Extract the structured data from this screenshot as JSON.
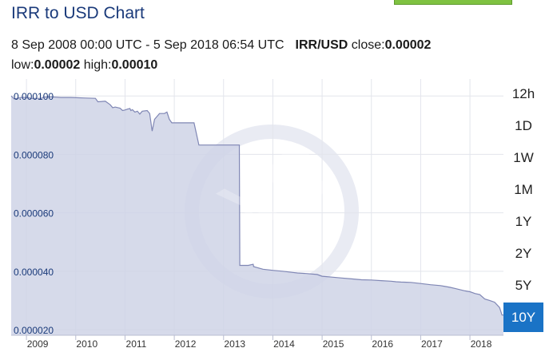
{
  "header": {
    "title": "IRR to USD Chart",
    "range_text": "8 Sep 2008 00:00 UTC - 5 Sep 2018 06:54 UTC",
    "pair": "IRR/USD",
    "close_label": "close:",
    "close_value": "0.00002",
    "low_label": "low:",
    "low_value": "0.00002",
    "high_label": "high:",
    "high_value": "0.00010"
  },
  "ranges": [
    {
      "label": "12h",
      "active": false
    },
    {
      "label": "1D",
      "active": false
    },
    {
      "label": "1W",
      "active": false
    },
    {
      "label": "1M",
      "active": false
    },
    {
      "label": "1Y",
      "active": false
    },
    {
      "label": "2Y",
      "active": false
    },
    {
      "label": "5Y",
      "active": false
    },
    {
      "label": "10Y",
      "active": true
    }
  ],
  "colors": {
    "area_fill": "#cfd3e6",
    "line": "#7f86b4",
    "active_button": "#1a73c6",
    "title": "#1a3a7a"
  },
  "chart_data": {
    "type": "area",
    "title": "IRR to USD Chart",
    "xlabel": "",
    "ylabel": "",
    "x_ticks": [
      "2009",
      "2010",
      "2011",
      "2012",
      "2013",
      "2014",
      "2015",
      "2016",
      "2017",
      "2018"
    ],
    "y_ticks": [
      "0.000020",
      "0.000040",
      "0.000060",
      "0.000080",
      "0.000100"
    ],
    "xlim": [
      2008.69,
      2018.68
    ],
    "ylim": [
      1.81e-05,
      0.0001058
    ],
    "grid": true,
    "series": [
      {
        "x": [
          2008.69,
          2008.75,
          2008.9,
          2009.0,
          2009.1,
          2009.3,
          2009.35,
          2009.5,
          2009.7,
          2009.9,
          2010.2,
          2010.4,
          2010.45,
          2010.6,
          2010.7,
          2010.75,
          2010.8,
          2010.9,
          2010.95,
          2011.0,
          2011.05,
          2011.1,
          2011.12,
          2011.15,
          2011.2,
          2011.25,
          2011.3,
          2011.35,
          2011.45,
          2011.5,
          2011.55,
          2011.6,
          2011.65,
          2011.7,
          2011.8,
          2011.85,
          2011.9,
          2011.95,
          2012.4,
          2012.5,
          2012.9,
          2013.0,
          2013.2,
          2013.32,
          2013.33,
          2013.5,
          2013.6,
          2013.61,
          2013.65,
          2013.8,
          2014.0,
          2014.2,
          2014.4,
          2014.5,
          2014.7,
          2014.9,
          2015.0,
          2015.2,
          2015.4,
          2015.6,
          2015.8,
          2016.0,
          2016.2,
          2016.4,
          2016.5,
          2016.6,
          2016.8,
          2017.0,
          2017.2,
          2017.4,
          2017.5,
          2017.6,
          2017.7,
          2017.8,
          2017.9,
          2018.0,
          2018.05,
          2018.1,
          2018.2,
          2018.3,
          2018.4,
          2018.5,
          2018.6,
          2018.65,
          2018.68
        ],
        "y": [
          0.0001,
          9.9e-05,
          9.95e-05,
          9.95e-05,
          9.92e-05,
          9.92e-05,
          9.96e-05,
          9.97e-05,
          9.95e-05,
          9.95e-05,
          9.93e-05,
          9.92e-05,
          9.8e-05,
          9.82e-05,
          9.7e-05,
          9.6e-05,
          9.62e-05,
          9.58e-05,
          9.5e-05,
          9.52e-05,
          9.55e-05,
          9.57e-05,
          9.5e-05,
          9.53e-05,
          9.45e-05,
          9.48e-05,
          9.38e-05,
          9.48e-05,
          9.5e-05,
          9.4e-05,
          8.8e-05,
          9.2e-05,
          9.3e-05,
          9.4e-05,
          9.4e-05,
          9.45e-05,
          9.2e-05,
          9.08e-05,
          9.08e-05,
          8.32e-05,
          8.32e-05,
          8.32e-05,
          8.32e-05,
          8.32e-05,
          4.2e-05,
          4.2e-05,
          4.24e-05,
          4.16e-05,
          4.14e-05,
          4.07e-05,
          4.03e-05,
          4e-05,
          3.96e-05,
          3.94e-05,
          3.92e-05,
          3.89e-05,
          3.83e-05,
          3.8e-05,
          3.77e-05,
          3.74e-05,
          3.71e-05,
          3.7e-05,
          3.68e-05,
          3.66e-05,
          3.64e-05,
          3.63e-05,
          3.62e-05,
          3.58e-05,
          3.54e-05,
          3.51e-05,
          3.48e-05,
          3.45e-05,
          3.41e-05,
          3.37e-05,
          3.33e-05,
          3.3e-05,
          3.27e-05,
          3.24e-05,
          3.2e-05,
          3.05e-05,
          3e-05,
          2.94e-05,
          2.76e-05,
          2.5e-05,
          2.5e-05
        ]
      }
    ]
  }
}
